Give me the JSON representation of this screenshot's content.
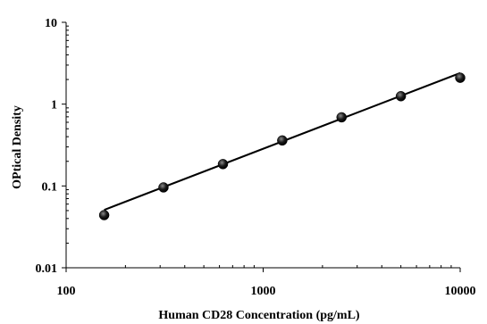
{
  "chart_data": {
    "type": "scatter",
    "title": "",
    "xlabel": "Human CD28 Concentration (pg/mL)",
    "ylabel": "OPtical Density",
    "xscale": "log",
    "yscale": "log",
    "xlim": [
      100,
      10000
    ],
    "ylim": [
      0.01,
      10
    ],
    "x_ticks": [
      100,
      1000,
      10000
    ],
    "x_tick_labels": [
      "100",
      "1000",
      "10000"
    ],
    "y_ticks": [
      0.01,
      0.1,
      1,
      10
    ],
    "y_tick_labels": [
      "0.01",
      "0.1",
      "1",
      "10"
    ],
    "grid": false,
    "legend": "none",
    "series": [
      {
        "x": [
          156,
          312,
          625,
          1250,
          2500,
          5000,
          10000
        ],
        "y": [
          0.044,
          0.096,
          0.185,
          0.36,
          0.69,
          1.25,
          2.1
        ],
        "color": "#000000"
      }
    ],
    "fit_line": {
      "x": [
        156,
        10000
      ],
      "y": [
        0.051,
        2.4
      ],
      "color": "#000000"
    }
  }
}
